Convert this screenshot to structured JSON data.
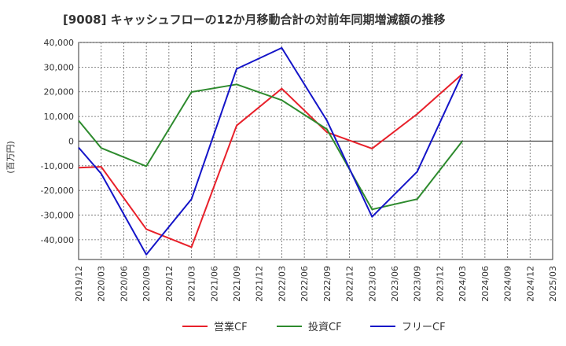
{
  "chart_data": {
    "type": "line",
    "title": "[9008]  キャッシュフローの12か月移動合計の対前年同期増減額の推移",
    "ylabel": "(百万円)",
    "xlabel": "",
    "ylim": [
      -48000,
      40000
    ],
    "yticks": [
      40000,
      30000,
      20000,
      10000,
      0,
      -10000,
      -20000,
      -30000,
      -40000
    ],
    "ytick_labels": [
      "40,000",
      "30,000",
      "20,000",
      "10,000",
      "0",
      "-10,000",
      "-20,000",
      "-30,000",
      "-40,000"
    ],
    "categories": [
      "2019/12",
      "2020/03",
      "2020/06",
      "2020/09",
      "2020/12",
      "2021/03",
      "2021/06",
      "2021/09",
      "2021/12",
      "2022/03",
      "2022/06",
      "2022/09",
      "2022/12",
      "2023/03",
      "2023/06",
      "2023/09",
      "2023/12",
      "2024/03",
      "2024/06",
      "2024/09",
      "2024/12",
      "2025/03"
    ],
    "grid": true,
    "legend_position": "bottom",
    "series": [
      {
        "name": "営業CF",
        "color": "#e8202a",
        "values": [
          -10800,
          -10400,
          null,
          -35700,
          null,
          -43000,
          null,
          6300,
          null,
          21300,
          null,
          3600,
          null,
          -3000,
          null,
          11000,
          null,
          27200,
          null,
          null,
          null,
          null
        ]
      },
      {
        "name": "投資CF",
        "color": "#2e8b2e",
        "values": [
          8300,
          -2800,
          null,
          -10200,
          null,
          19900,
          null,
          23000,
          null,
          16600,
          null,
          4800,
          null,
          -27700,
          null,
          -23500,
          null,
          0,
          null,
          null,
          null,
          null
        ]
      },
      {
        "name": "フリーCF",
        "color": "#1414c8",
        "values": [
          -2600,
          -13200,
          null,
          -46000,
          null,
          -23500,
          null,
          29300,
          null,
          37800,
          null,
          8300,
          null,
          -30700,
          null,
          -12400,
          null,
          27200,
          null,
          null,
          null,
          null
        ]
      }
    ]
  }
}
